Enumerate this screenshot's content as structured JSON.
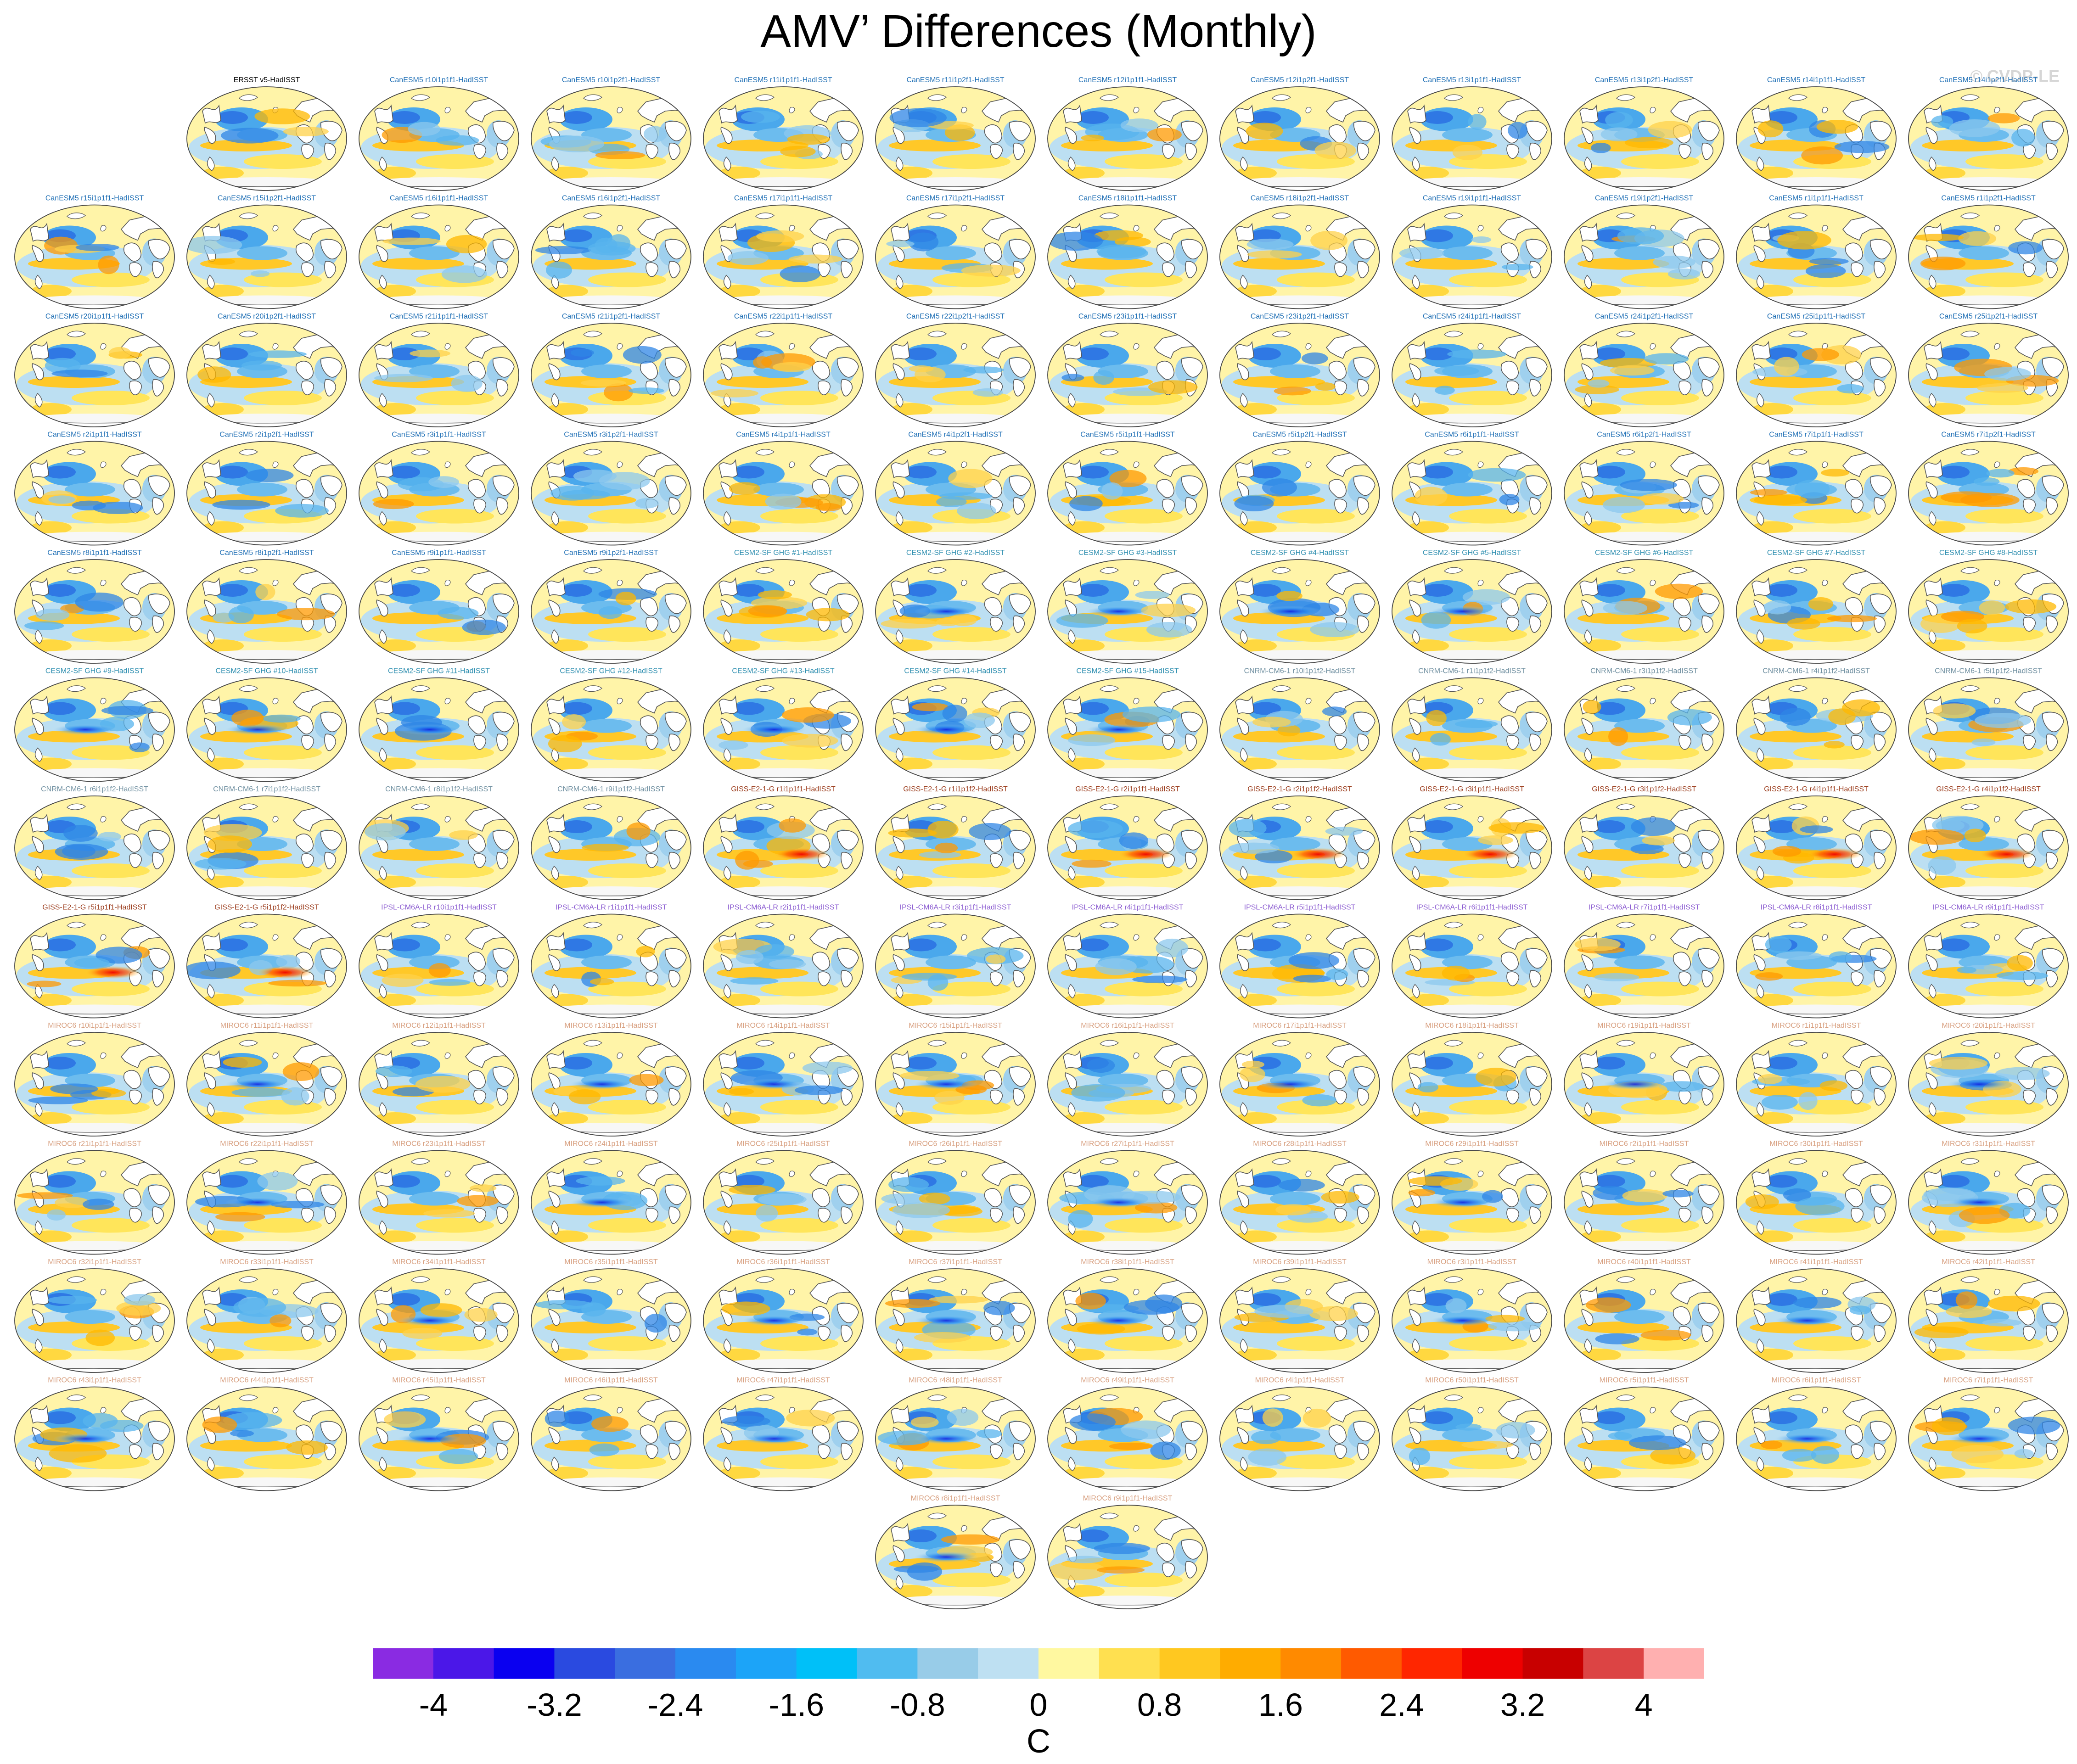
{
  "figure": {
    "title": "AMV’ Differences (Monthly)",
    "credit": "© CVDP-LE"
  },
  "chart_data": {
    "type": "heatmap",
    "projection": "robinson",
    "grid": false,
    "panel_columns": 12,
    "panels": [
      {
        "label": "ERSST v5-HadISST",
        "group": "obs"
      },
      {
        "label": "CanESM5 r10i1p1f1-HadISST",
        "group": "CanESM5"
      },
      {
        "label": "CanESM5 r10i1p2f1-HadISST",
        "group": "CanESM5"
      },
      {
        "label": "CanESM5 r11i1p1f1-HadISST",
        "group": "CanESM5"
      },
      {
        "label": "CanESM5 r11i1p2f1-HadISST",
        "group": "CanESM5"
      },
      {
        "label": "CanESM5 r12i1p1f1-HadISST",
        "group": "CanESM5"
      },
      {
        "label": "CanESM5 r12i1p2f1-HadISST",
        "group": "CanESM5"
      },
      {
        "label": "CanESM5 r13i1p1f1-HadISST",
        "group": "CanESM5"
      },
      {
        "label": "CanESM5 r13i1p2f1-HadISST",
        "group": "CanESM5"
      },
      {
        "label": "CanESM5 r14i1p1f1-HadISST",
        "group": "CanESM5"
      },
      {
        "label": "CanESM5 r14i1p2f1-HadISST",
        "group": "CanESM5"
      },
      {
        "label": "CanESM5 r15i1p1f1-HadISST",
        "group": "CanESM5"
      },
      {
        "label": "CanESM5 r15i1p2f1-HadISST",
        "group": "CanESM5"
      },
      {
        "label": "CanESM5 r16i1p1f1-HadISST",
        "group": "CanESM5"
      },
      {
        "label": "CanESM5 r16i1p2f1-HadISST",
        "group": "CanESM5"
      },
      {
        "label": "CanESM5 r17i1p1f1-HadISST",
        "group": "CanESM5"
      },
      {
        "label": "CanESM5 r17i1p2f1-HadISST",
        "group": "CanESM5"
      },
      {
        "label": "CanESM5 r18i1p1f1-HadISST",
        "group": "CanESM5"
      },
      {
        "label": "CanESM5 r18i1p2f1-HadISST",
        "group": "CanESM5"
      },
      {
        "label": "CanESM5 r19i1p1f1-HadISST",
        "group": "CanESM5"
      },
      {
        "label": "CanESM5 r19i1p2f1-HadISST",
        "group": "CanESM5"
      },
      {
        "label": "CanESM5 r1i1p1f1-HadISST",
        "group": "CanESM5"
      },
      {
        "label": "CanESM5 r1i1p2f1-HadISST",
        "group": "CanESM5"
      },
      {
        "label": "CanESM5 r20i1p1f1-HadISST",
        "group": "CanESM5"
      },
      {
        "label": "CanESM5 r20i1p2f1-HadISST",
        "group": "CanESM5"
      },
      {
        "label": "CanESM5 r21i1p1f1-HadISST",
        "group": "CanESM5"
      },
      {
        "label": "CanESM5 r21i1p2f1-HadISST",
        "group": "CanESM5"
      },
      {
        "label": "CanESM5 r22i1p1f1-HadISST",
        "group": "CanESM5"
      },
      {
        "label": "CanESM5 r22i1p2f1-HadISST",
        "group": "CanESM5"
      },
      {
        "label": "CanESM5 r23i1p1f1-HadISST",
        "group": "CanESM5"
      },
      {
        "label": "CanESM5 r23i1p2f1-HadISST",
        "group": "CanESM5"
      },
      {
        "label": "CanESM5 r24i1p1f1-HadISST",
        "group": "CanESM5"
      },
      {
        "label": "CanESM5 r24i1p2f1-HadISST",
        "group": "CanESM5"
      },
      {
        "label": "CanESM5 r25i1p1f1-HadISST",
        "group": "CanESM5"
      },
      {
        "label": "CanESM5 r25i1p2f1-HadISST",
        "group": "CanESM5"
      },
      {
        "label": "CanESM5 r2i1p1f1-HadISST",
        "group": "CanESM5"
      },
      {
        "label": "CanESM5 r2i1p2f1-HadISST",
        "group": "CanESM5"
      },
      {
        "label": "CanESM5 r3i1p1f1-HadISST",
        "group": "CanESM5"
      },
      {
        "label": "CanESM5 r3i1p2f1-HadISST",
        "group": "CanESM5"
      },
      {
        "label": "CanESM5 r4i1p1f1-HadISST",
        "group": "CanESM5"
      },
      {
        "label": "CanESM5 r4i1p2f1-HadISST",
        "group": "CanESM5"
      },
      {
        "label": "CanESM5 r5i1p1f1-HadISST",
        "group": "CanESM5"
      },
      {
        "label": "CanESM5 r5i1p2f1-HadISST",
        "group": "CanESM5"
      },
      {
        "label": "CanESM5 r6i1p1f1-HadISST",
        "group": "CanESM5"
      },
      {
        "label": "CanESM5 r6i1p2f1-HadISST",
        "group": "CanESM5"
      },
      {
        "label": "CanESM5 r7i1p1f1-HadISST",
        "group": "CanESM5"
      },
      {
        "label": "CanESM5 r7i1p2f1-HadISST",
        "group": "CanESM5"
      },
      {
        "label": "CanESM5 r8i1p1f1-HadISST",
        "group": "CanESM5"
      },
      {
        "label": "CanESM5 r8i1p2f1-HadISST",
        "group": "CanESM5"
      },
      {
        "label": "CanESM5 r9i1p1f1-HadISST",
        "group": "CanESM5"
      },
      {
        "label": "CanESM5 r9i1p2f1-HadISST",
        "group": "CanESM5"
      },
      {
        "label": "CESM2-SF GHG #1-HadISST",
        "group": "CESM2"
      },
      {
        "label": "CESM2-SF GHG #2-HadISST",
        "group": "CESM2"
      },
      {
        "label": "CESM2-SF GHG #3-HadISST",
        "group": "CESM2"
      },
      {
        "label": "CESM2-SF GHG #4-HadISST",
        "group": "CESM2"
      },
      {
        "label": "CESM2-SF GHG #5-HadISST",
        "group": "CESM2"
      },
      {
        "label": "CESM2-SF GHG #6-HadISST",
        "group": "CESM2"
      },
      {
        "label": "CESM2-SF GHG #7-HadISST",
        "group": "CESM2"
      },
      {
        "label": "CESM2-SF GHG #8-HadISST",
        "group": "CESM2"
      },
      {
        "label": "CESM2-SF GHG #9-HadISST",
        "group": "CESM2"
      },
      {
        "label": "CESM2-SF GHG #10-HadISST",
        "group": "CESM2"
      },
      {
        "label": "CESM2-SF GHG #11-HadISST",
        "group": "CESM2"
      },
      {
        "label": "CESM2-SF GHG #12-HadISST",
        "group": "CESM2"
      },
      {
        "label": "CESM2-SF GHG #13-HadISST",
        "group": "CESM2"
      },
      {
        "label": "CESM2-SF GHG #14-HadISST",
        "group": "CESM2"
      },
      {
        "label": "CESM2-SF GHG #15-HadISST",
        "group": "CESM2"
      },
      {
        "label": "CNRM-CM6-1 r10i1p1f2-HadISST",
        "group": "CNRM"
      },
      {
        "label": "CNRM-CM6-1 r1i1p1f2-HadISST",
        "group": "CNRM"
      },
      {
        "label": "CNRM-CM6-1 r3i1p1f2-HadISST",
        "group": "CNRM"
      },
      {
        "label": "CNRM-CM6-1 r4i1p1f2-HadISST",
        "group": "CNRM"
      },
      {
        "label": "CNRM-CM6-1 r5i1p1f2-HadISST",
        "group": "CNRM"
      },
      {
        "label": "CNRM-CM6-1 r6i1p1f2-HadISST",
        "group": "CNRM"
      },
      {
        "label": "CNRM-CM6-1 r7i1p1f2-HadISST",
        "group": "CNRM"
      },
      {
        "label": "CNRM-CM6-1 r8i1p1f2-HadISST",
        "group": "CNRM"
      },
      {
        "label": "CNRM-CM6-1 r9i1p1f2-HadISST",
        "group": "CNRM"
      },
      {
        "label": "GISS-E2-1-G r1i1p1f1-HadISST",
        "group": "GISS"
      },
      {
        "label": "GISS-E2-1-G r1i1p1f2-HadISST",
        "group": "GISS"
      },
      {
        "label": "GISS-E2-1-G r2i1p1f1-HadISST",
        "group": "GISS"
      },
      {
        "label": "GISS-E2-1-G r2i1p1f2-HadISST",
        "group": "GISS"
      },
      {
        "label": "GISS-E2-1-G r3i1p1f1-HadISST",
        "group": "GISS"
      },
      {
        "label": "GISS-E2-1-G r3i1p1f2-HadISST",
        "group": "GISS"
      },
      {
        "label": "GISS-E2-1-G r4i1p1f1-HadISST",
        "group": "GISS"
      },
      {
        "label": "GISS-E2-1-G r4i1p1f2-HadISST",
        "group": "GISS"
      },
      {
        "label": "GISS-E2-1-G r5i1p1f1-HadISST",
        "group": "GISS"
      },
      {
        "label": "GISS-E2-1-G r5i1p1f2-HadISST",
        "group": "GISS"
      },
      {
        "label": "IPSL-CM6A-LR r10i1p1f1-HadISST",
        "group": "IPSL"
      },
      {
        "label": "IPSL-CM6A-LR r1i1p1f1-HadISST",
        "group": "IPSL"
      },
      {
        "label": "IPSL-CM6A-LR r2i1p1f1-HadISST",
        "group": "IPSL"
      },
      {
        "label": "IPSL-CM6A-LR r3i1p1f1-HadISST",
        "group": "IPSL"
      },
      {
        "label": "IPSL-CM6A-LR r4i1p1f1-HadISST",
        "group": "IPSL"
      },
      {
        "label": "IPSL-CM6A-LR r5i1p1f1-HadISST",
        "group": "IPSL"
      },
      {
        "label": "IPSL-CM6A-LR r6i1p1f1-HadISST",
        "group": "IPSL"
      },
      {
        "label": "IPSL-CM6A-LR r7i1p1f1-HadISST",
        "group": "IPSL"
      },
      {
        "label": "IPSL-CM6A-LR r8i1p1f1-HadISST",
        "group": "IPSL"
      },
      {
        "label": "IPSL-CM6A-LR r9i1p1f1-HadISST",
        "group": "IPSL"
      },
      {
        "label": "MIROC6 r10i1p1f1-HadISST",
        "group": "MIROC6"
      },
      {
        "label": "MIROC6 r11i1p1f1-HadISST",
        "group": "MIROC6"
      },
      {
        "label": "MIROC6 r12i1p1f1-HadISST",
        "group": "MIROC6"
      },
      {
        "label": "MIROC6 r13i1p1f1-HadISST",
        "group": "MIROC6"
      },
      {
        "label": "MIROC6 r14i1p1f1-HadISST",
        "group": "MIROC6"
      },
      {
        "label": "MIROC6 r15i1p1f1-HadISST",
        "group": "MIROC6"
      },
      {
        "label": "MIROC6 r16i1p1f1-HadISST",
        "group": "MIROC6"
      },
      {
        "label": "MIROC6 r17i1p1f1-HadISST",
        "group": "MIROC6"
      },
      {
        "label": "MIROC6 r18i1p1f1-HadISST",
        "group": "MIROC6"
      },
      {
        "label": "MIROC6 r19i1p1f1-HadISST",
        "group": "MIROC6"
      },
      {
        "label": "MIROC6 r1i1p1f1-HadISST",
        "group": "MIROC6"
      },
      {
        "label": "MIROC6 r20i1p1f1-HadISST",
        "group": "MIROC6"
      },
      {
        "label": "MIROC6 r21i1p1f1-HadISST",
        "group": "MIROC6"
      },
      {
        "label": "MIROC6 r22i1p1f1-HadISST",
        "group": "MIROC6"
      },
      {
        "label": "MIROC6 r23i1p1f1-HadISST",
        "group": "MIROC6"
      },
      {
        "label": "MIROC6 r24i1p1f1-HadISST",
        "group": "MIROC6"
      },
      {
        "label": "MIROC6 r25i1p1f1-HadISST",
        "group": "MIROC6"
      },
      {
        "label": "MIROC6 r26i1p1f1-HadISST",
        "group": "MIROC6"
      },
      {
        "label": "MIROC6 r27i1p1f1-HadISST",
        "group": "MIROC6"
      },
      {
        "label": "MIROC6 r28i1p1f1-HadISST",
        "group": "MIROC6"
      },
      {
        "label": "MIROC6 r29i1p1f1-HadISST",
        "group": "MIROC6"
      },
      {
        "label": "MIROC6 r2i1p1f1-HadISST",
        "group": "MIROC6"
      },
      {
        "label": "MIROC6 r30i1p1f1-HadISST",
        "group": "MIROC6"
      },
      {
        "label": "MIROC6 r31i1p1f1-HadISST",
        "group": "MIROC6"
      },
      {
        "label": "MIROC6 r32i1p1f1-HadISST",
        "group": "MIROC6"
      },
      {
        "label": "MIROC6 r33i1p1f1-HadISST",
        "group": "MIROC6"
      },
      {
        "label": "MIROC6 r34i1p1f1-HadISST",
        "group": "MIROC6"
      },
      {
        "label": "MIROC6 r35i1p1f1-HadISST",
        "group": "MIROC6"
      },
      {
        "label": "MIROC6 r36i1p1f1-HadISST",
        "group": "MIROC6"
      },
      {
        "label": "MIROC6 r37i1p1f1-HadISST",
        "group": "MIROC6"
      },
      {
        "label": "MIROC6 r38i1p1f1-HadISST",
        "group": "MIROC6"
      },
      {
        "label": "MIROC6 r39i1p1f1-HadISST",
        "group": "MIROC6"
      },
      {
        "label": "MIROC6 r3i1p1f1-HadISST",
        "group": "MIROC6"
      },
      {
        "label": "MIROC6 r40i1p1f1-HadISST",
        "group": "MIROC6"
      },
      {
        "label": "MIROC6 r41i1p1f1-HadISST",
        "group": "MIROC6"
      },
      {
        "label": "MIROC6 r42i1p1f1-HadISST",
        "group": "MIROC6"
      },
      {
        "label": "MIROC6 r43i1p1f1-HadISST",
        "group": "MIROC6"
      },
      {
        "label": "MIROC6 r44i1p1f1-HadISST",
        "group": "MIROC6"
      },
      {
        "label": "MIROC6 r45i1p1f1-HadISST",
        "group": "MIROC6"
      },
      {
        "label": "MIROC6 r46i1p1f1-HadISST",
        "group": "MIROC6"
      },
      {
        "label": "MIROC6 r47i1p1f1-HadISST",
        "group": "MIROC6"
      },
      {
        "label": "MIROC6 r48i1p1f1-HadISST",
        "group": "MIROC6"
      },
      {
        "label": "MIROC6 r49i1p1f1-HadISST",
        "group": "MIROC6"
      },
      {
        "label": "MIROC6 r4i1p1f1-HadISST",
        "group": "MIROC6"
      },
      {
        "label": "MIROC6 r50i1p1f1-HadISST",
        "group": "MIROC6"
      },
      {
        "label": "MIROC6 r5i1p1f1-HadISST",
        "group": "MIROC6"
      },
      {
        "label": "MIROC6 r6i1p1f1-HadISST",
        "group": "MIROC6"
      },
      {
        "label": "MIROC6 r7i1p1f1-HadISST",
        "group": "MIROC6"
      },
      {
        "label": "MIROC6 r8i1p1f1-HadISST",
        "group": "MIROC6"
      },
      {
        "label": "MIROC6 r9i1p1f1-HadISST",
        "group": "MIROC6"
      }
    ],
    "group_label_colors": {
      "obs": "#000000",
      "CanESM5": "#1f6fb5",
      "CESM2": "#2f8fb0",
      "CNRM": "#6f8fa0",
      "GISS": "#9a3a1a",
      "IPSL": "#8a5ad0",
      "MIROC6": "#d8a080"
    },
    "colorbar": {
      "levels": [
        -4.4,
        -4.0,
        -3.6,
        -3.2,
        -2.8,
        -2.4,
        -2.0,
        -1.6,
        -1.2,
        -0.8,
        -0.4,
        0,
        0.4,
        0.8,
        1.2,
        1.6,
        2.0,
        2.4,
        2.8,
        3.2,
        3.6,
        4.0,
        4.4
      ],
      "colors": [
        "#8a2be2",
        "#4b17e8",
        "#0a00f0",
        "#2a4ae0",
        "#3a6ee0",
        "#2a8af0",
        "#1ca4f8",
        "#00c0f8",
        "#50bcf0",
        "#98cce8",
        "#bee0f2",
        "#fff8a0",
        "#ffe050",
        "#ffc820",
        "#ffac00",
        "#ff8a00",
        "#ff5a00",
        "#ff2600",
        "#ee0000",
        "#c80000",
        "#dc4444",
        "#ffb0b0"
      ],
      "tick_values": [
        -4,
        -3.2,
        -2.4,
        -1.6,
        -0.8,
        0,
        0.8,
        1.6,
        2.4,
        3.2,
        4
      ],
      "tick_labels": [
        "-4",
        "-3.2",
        "-2.4",
        "-1.6",
        "-0.8",
        "0",
        "0.8",
        "1.6",
        "2.4",
        "3.2",
        "4"
      ],
      "units": "C"
    }
  }
}
